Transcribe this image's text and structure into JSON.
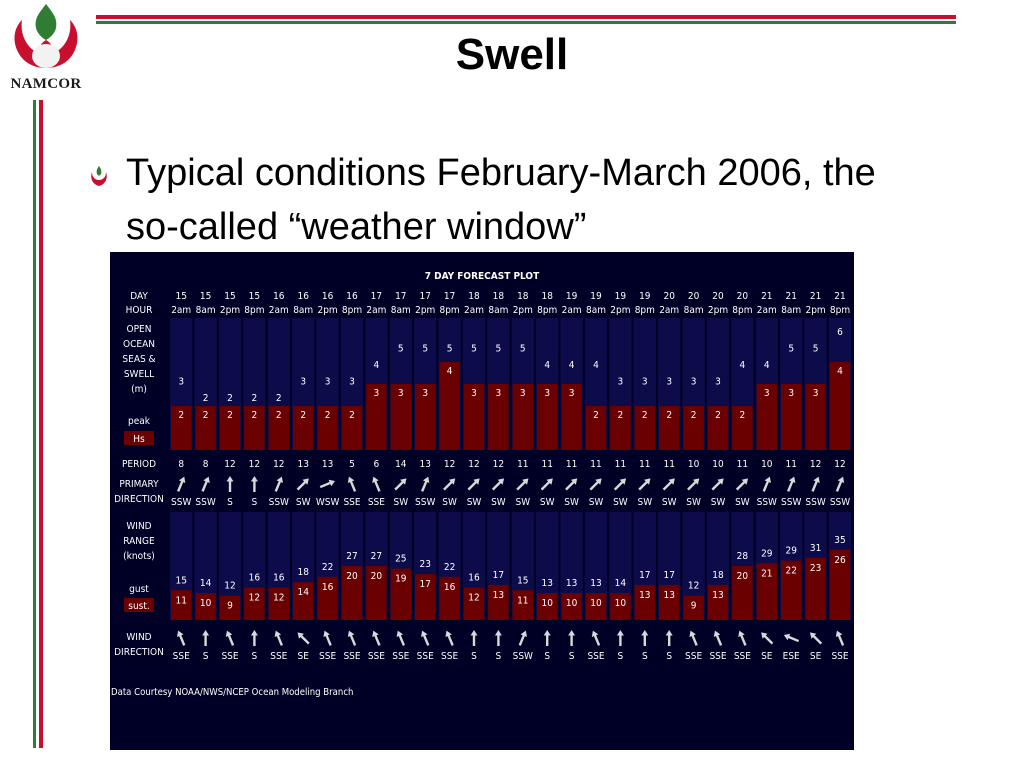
{
  "slide": {
    "logo_text": "NAMCOR",
    "title": "Swell",
    "bullet": "Typical conditions February-March 2006, the so-called “weather window”"
  },
  "chart_data": {
    "type": "table",
    "title": "7 DAY FORECAST PLOT",
    "labels": {
      "day": "DAY",
      "hour": "HOUR",
      "seas": [
        "OPEN",
        "OCEAN",
        "SEAS &",
        "SWELL",
        "(m)"
      ],
      "peak": "peak",
      "hs": "Hs",
      "period": "PERIOD",
      "primary": [
        "PRIMARY",
        "DIRECTION"
      ],
      "wind_range": [
        "WIND",
        "RANGE",
        "(knots)"
      ],
      "gust": "gust",
      "sust": "sust.",
      "wind_dir": [
        "WIND",
        "DIRECTION"
      ]
    },
    "days": [
      "15",
      "15",
      "15",
      "15",
      "16",
      "16",
      "16",
      "16",
      "17",
      "17",
      "17",
      "17",
      "18",
      "18",
      "18",
      "18",
      "19",
      "19",
      "19",
      "19",
      "20",
      "20",
      "20",
      "20",
      "21",
      "21",
      "21",
      "21"
    ],
    "hours": [
      "2am",
      "8am",
      "2pm",
      "8pm",
      "2am",
      "8am",
      "2pm",
      "8pm",
      "2am",
      "8am",
      "2pm",
      "8pm",
      "2am",
      "8am",
      "2pm",
      "8pm",
      "2am",
      "8am",
      "2pm",
      "8pm",
      "2am",
      "8am",
      "2pm",
      "8pm",
      "2am",
      "8am",
      "2pm",
      "8pm"
    ],
    "peak": [
      3,
      2,
      2,
      2,
      2,
      3,
      3,
      3,
      4,
      5,
      5,
      5,
      5,
      5,
      5,
      4,
      4,
      4,
      3,
      3,
      3,
      3,
      3,
      4,
      4,
      5,
      5,
      6
    ],
    "hs": [
      2,
      2,
      2,
      2,
      2,
      2,
      2,
      2,
      3,
      3,
      3,
      4,
      3,
      3,
      3,
      3,
      3,
      2,
      2,
      2,
      2,
      2,
      2,
      2,
      3,
      3,
      3,
      4
    ],
    "period": [
      8,
      8,
      12,
      12,
      12,
      13,
      13,
      5,
      6,
      14,
      13,
      12,
      12,
      12,
      11,
      11,
      11,
      11,
      11,
      11,
      11,
      10,
      10,
      11,
      10,
      11,
      12,
      12
    ],
    "primary_dir": [
      "SSW",
      "SSW",
      "S",
      "S",
      "SSW",
      "SW",
      "WSW",
      "SSE",
      "SSE",
      "SW",
      "SSW",
      "SW",
      "SW",
      "SW",
      "SW",
      "SW",
      "SW",
      "SW",
      "SW",
      "SW",
      "SW",
      "SW",
      "SW",
      "SW",
      "SSW",
      "SSW",
      "SSW",
      "SSW"
    ],
    "gust": [
      15,
      14,
      12,
      16,
      16,
      18,
      22,
      27,
      27,
      25,
      23,
      22,
      16,
      17,
      15,
      13,
      13,
      13,
      14,
      17,
      17,
      12,
      18,
      28,
      29,
      29,
      31,
      35
    ],
    "sust": [
      11,
      10,
      9,
      12,
      12,
      14,
      16,
      20,
      20,
      19,
      17,
      16,
      12,
      13,
      11,
      10,
      10,
      10,
      10,
      13,
      13,
      9,
      13,
      20,
      21,
      22,
      23,
      26
    ],
    "wind_dir": [
      "SSE",
      "S",
      "SSE",
      "S",
      "SSE",
      "SE",
      "SSE",
      "SSE",
      "SSE",
      "SSE",
      "SSE",
      "SSE",
      "S",
      "S",
      "SSW",
      "S",
      "S",
      "SSE",
      "S",
      "S",
      "S",
      "SSE",
      "SSE",
      "SSE",
      "SE",
      "ESE",
      "SE",
      "SSE"
    ],
    "footer": "Data Courtesy NOAA/NWS/NCEP Ocean Modeling Branch",
    "colors": {
      "background": "#000026",
      "column": "#0c0c4a",
      "bar": "#6b0000",
      "text": "#ffffff"
    }
  }
}
